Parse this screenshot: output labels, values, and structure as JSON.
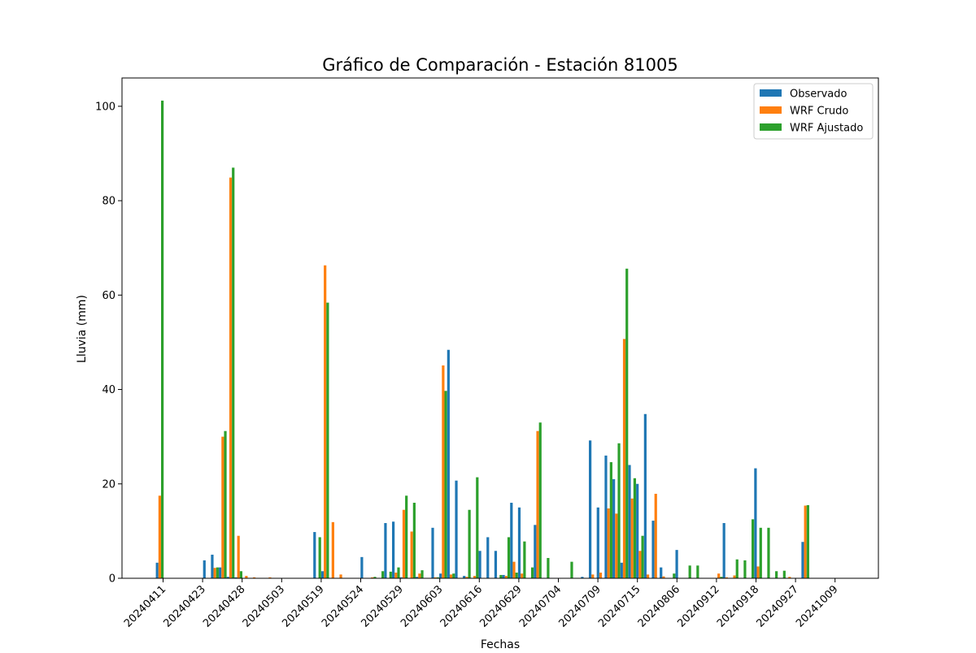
{
  "chart_data": {
    "type": "bar",
    "title": "Gráfico de Comparación - Estación 81005",
    "xlabel": "Fechas",
    "ylabel": "Lluvia (mm)",
    "ylim": [
      0,
      106
    ],
    "yticks": [
      0,
      20,
      40,
      60,
      80,
      100
    ],
    "xtick_labels": [
      "20240411",
      "20240423",
      "20240428",
      "20240503",
      "20240519",
      "20240524",
      "20240529",
      "20240603",
      "20240616",
      "20240629",
      "20240704",
      "20240709",
      "20240715",
      "20240806",
      "20240912",
      "20240918",
      "20240927",
      "20241009"
    ],
    "legend_position": "top-right",
    "grid": false,
    "series": [
      {
        "name": "Observado",
        "color": "#1f77b4",
        "values": [
          3.3,
          0,
          0,
          0,
          0,
          0,
          3.8,
          5.0,
          2.3,
          0.3,
          0.2,
          0,
          0,
          0,
          0,
          0,
          0,
          0,
          0,
          0,
          9.8,
          1.5,
          0,
          0,
          0,
          0,
          4.5,
          0,
          0,
          11.7,
          12.0,
          0.2,
          0,
          0.3,
          0,
          10.7,
          1.0,
          48.4,
          20.7,
          0.5,
          0,
          5.8,
          8.7,
          5.8,
          0.7,
          16.0,
          15.0,
          0,
          11.3,
          0,
          0,
          0,
          0,
          0,
          0.3,
          29.2,
          15.0,
          26.0,
          21.0,
          3.3,
          24.0,
          20.0,
          34.8,
          12.2,
          2.3,
          0,
          6.0,
          0,
          0,
          0,
          0,
          0,
          11.7,
          0,
          0,
          0,
          23.3,
          0,
          0,
          0,
          0,
          0,
          7.7
        ]
      },
      {
        "name": "WRF Crudo",
        "color": "#ff7f0e",
        "values": [
          17.5,
          0,
          0,
          0,
          0,
          0,
          0,
          2.2,
          30.0,
          84.9,
          9.0,
          0.5,
          0.2,
          0,
          0.2,
          0,
          0,
          0,
          0,
          0,
          0,
          66.3,
          11.9,
          0.8,
          0,
          0,
          0,
          0.2,
          0,
          0,
          1.2,
          14.5,
          9.9,
          1.0,
          0,
          0.2,
          45.1,
          0.8,
          0,
          0.3,
          0.5,
          0,
          0,
          0,
          0.5,
          3.5,
          1.0,
          0,
          31.2,
          0,
          0,
          0,
          0,
          0,
          0,
          0.8,
          1.2,
          14.8,
          13.7,
          50.7,
          16.9,
          5.8,
          0.8,
          17.9,
          0.4,
          0,
          0,
          0,
          0,
          0,
          0,
          1.0,
          0.2,
          0.6,
          0,
          0,
          2.5,
          0,
          0,
          0,
          0.3,
          0,
          15.4
        ]
      },
      {
        "name": "WRF Ajustado",
        "color": "#2ca02c",
        "values": [
          101.2,
          0,
          0,
          0,
          0,
          0,
          0,
          2.3,
          31.2,
          87.0,
          1.5,
          0,
          0,
          0,
          0,
          0,
          0,
          0,
          0,
          0,
          8.7,
          58.4,
          0,
          0,
          0,
          0,
          0,
          0.3,
          1.5,
          1.4,
          2.3,
          17.5,
          16.0,
          1.7,
          0,
          0.2,
          39.7,
          1.0,
          0,
          14.5,
          21.4,
          0,
          0,
          0.7,
          8.7,
          1.2,
          7.8,
          2.3,
          33.0,
          4.3,
          0,
          0,
          3.5,
          0,
          0,
          0,
          0,
          24.6,
          28.6,
          65.6,
          21.2,
          9.0,
          0,
          0,
          0,
          1.0,
          0,
          2.7,
          2.7,
          0,
          0,
          0.3,
          0,
          4.0,
          3.8,
          12.5,
          10.7,
          10.7,
          1.5,
          1.6,
          0,
          0,
          15.5
        ]
      }
    ]
  }
}
